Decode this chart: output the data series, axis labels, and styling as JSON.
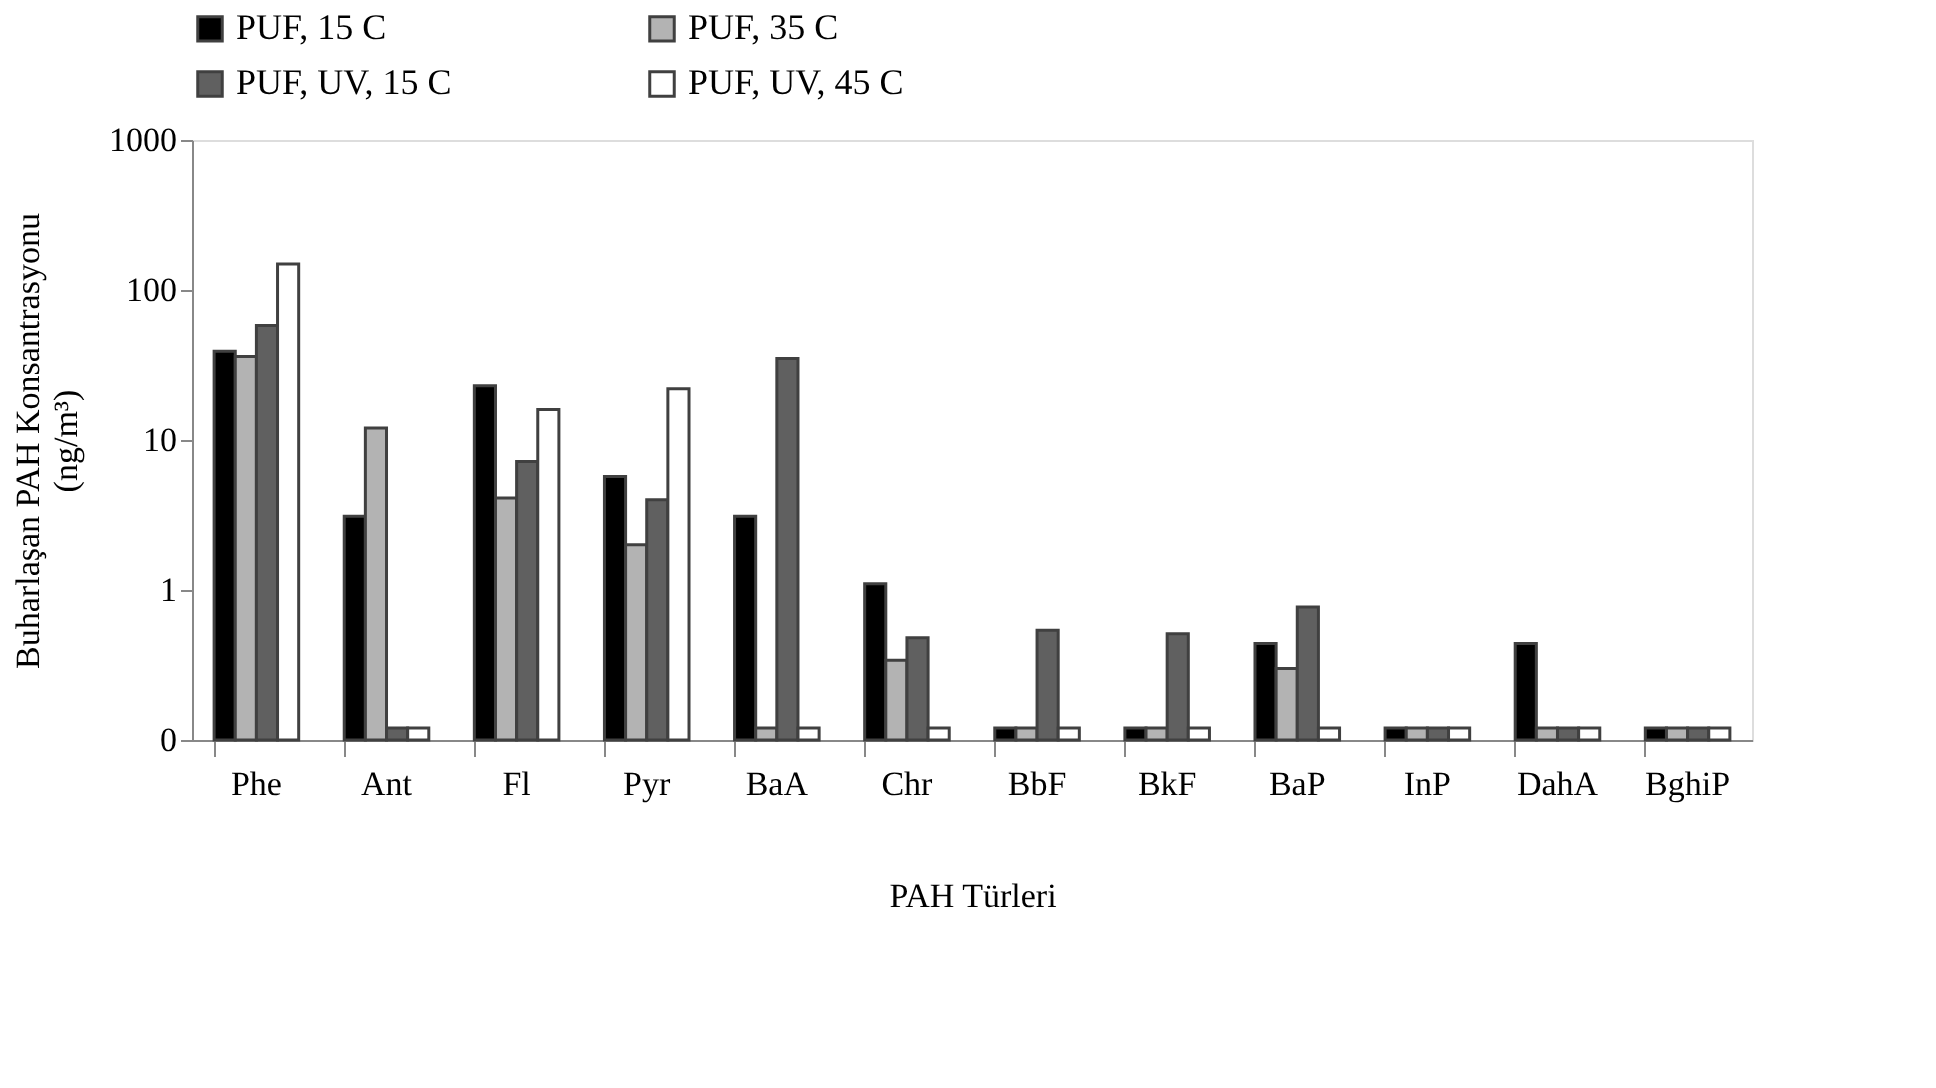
{
  "chart_data": {
    "type": "bar",
    "xlabel": "PAH  Türleri",
    "ylabel": "Buharlaşan  PAH Konsantrasyonu\n(ng/m³)",
    "categories": [
      "Phe",
      "Ant",
      "Fl",
      "Pyr",
      "BaA",
      "Chr",
      "BbF",
      "BkF",
      "BaP",
      "InP",
      "DahA",
      "BghiP"
    ],
    "series": [
      {
        "name": "PUF, 15  C",
        "color": "#000000",
        "values": [
          39,
          3.1,
          23,
          5.7,
          3.1,
          1.1,
          0.12,
          0.12,
          0.44,
          0.12,
          0.44,
          0.12
        ]
      },
      {
        "name": "PUF, 35  C",
        "color": "#b3b3b3",
        "values": [
          36,
          12,
          4.1,
          2.0,
          0.12,
          0.34,
          0.12,
          0.12,
          0.3,
          0.12,
          0.12,
          0.12
        ]
      },
      {
        "name": "PUF, UV, 15  C",
        "color": "#606060",
        "values": [
          58,
          0.12,
          7.2,
          4.0,
          35,
          0.48,
          0.54,
          0.51,
          0.77,
          0.12,
          0.12,
          0.12
        ]
      },
      {
        "name": "PUF, UV, 45  C",
        "color": "#ffffff",
        "values": [
          149,
          0.12,
          16,
          22,
          0.12,
          0.12,
          0.12,
          0.12,
          0.12,
          0.12,
          0.12,
          0.12
        ]
      }
    ],
    "log": true,
    "ylim": [
      0.1,
      1000
    ],
    "yticks": [
      {
        "value": 0.1,
        "label": "0"
      },
      1,
      10,
      100,
      1000
    ],
    "grid": false,
    "legend": "top"
  }
}
